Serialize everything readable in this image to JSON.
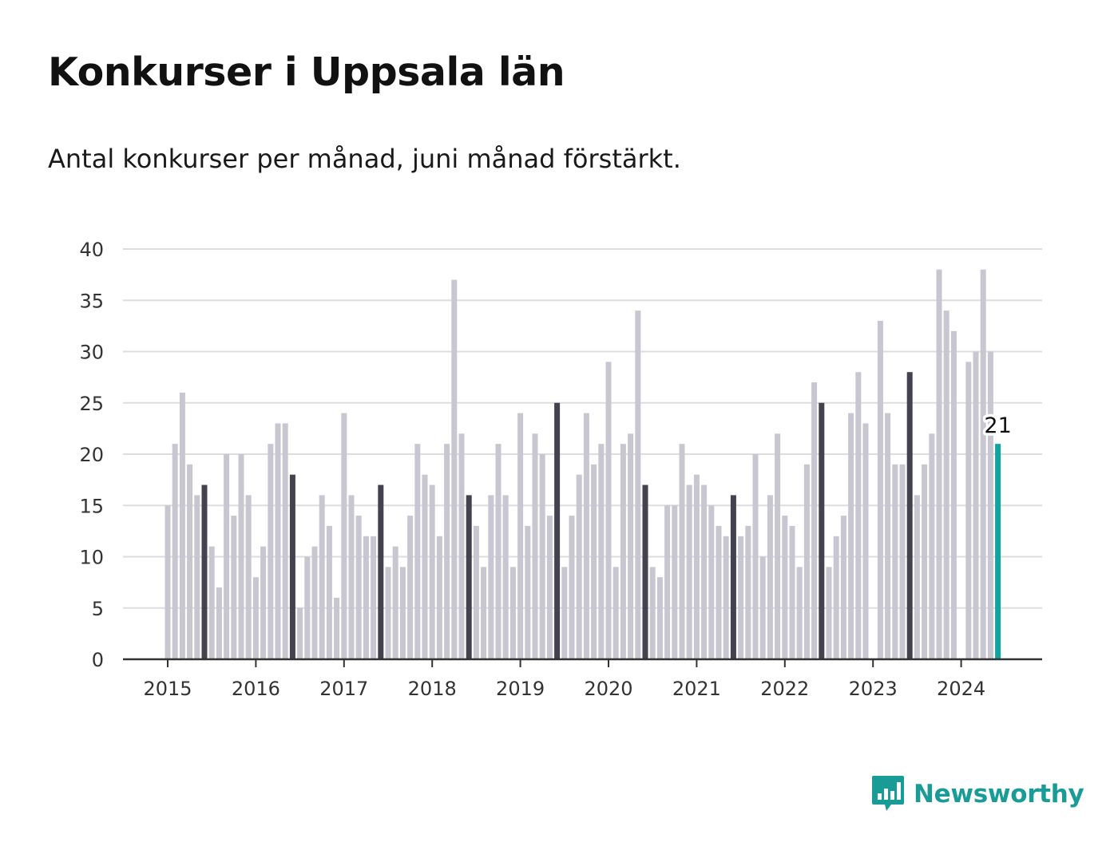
{
  "title": "Konkurser i Uppsala län",
  "subtitle": "Antal konkurser per månad, juni månad förstärkt.",
  "brand": {
    "name": "Newsworthy",
    "icon": "bar-chart-speech-bubble-icon",
    "color": "#1a9c96"
  },
  "colors": {
    "bar": "#c8c7d1",
    "june": "#43424f",
    "latest": "#0fa4a0",
    "grid": "#dddddd",
    "axis": "#333333"
  },
  "chart_data": {
    "type": "bar",
    "title": "Konkurser i Uppsala län",
    "subtitle": "Antal konkurser per månad, juni månad förstärkt.",
    "xlabel": "",
    "ylabel": "",
    "ylim": [
      0,
      40
    ],
    "yticks": [
      0,
      5,
      10,
      15,
      20,
      25,
      30,
      35,
      40
    ],
    "xticks": [
      "2015",
      "2016",
      "2017",
      "2018",
      "2019",
      "2020",
      "2021",
      "2022",
      "2023",
      "2024"
    ],
    "grid": true,
    "start": "2015-01",
    "end": "2024-06",
    "highlight": "June bars drawn dark; latest month (2024-06) drawn teal with value label",
    "values": [
      15,
      21,
      26,
      19,
      16,
      17,
      11,
      7,
      20,
      14,
      20,
      16,
      8,
      11,
      21,
      23,
      23,
      18,
      5,
      10,
      11,
      16,
      13,
      6,
      24,
      16,
      14,
      12,
      12,
      17,
      9,
      11,
      9,
      14,
      21,
      18,
      17,
      12,
      21,
      37,
      22,
      16,
      13,
      9,
      16,
      21,
      16,
      9,
      24,
      13,
      22,
      20,
      14,
      25,
      9,
      14,
      18,
      24,
      19,
      21,
      29,
      9,
      21,
      22,
      34,
      17,
      9,
      8,
      15,
      15,
      21,
      17,
      18,
      17,
      15,
      13,
      12,
      16,
      12,
      13,
      20,
      10,
      16,
      22,
      14,
      13,
      9,
      19,
      27,
      25,
      9,
      12,
      14,
      24,
      28,
      23,
      0,
      33,
      24,
      19,
      19,
      28,
      16,
      19,
      22,
      38,
      34,
      32,
      0,
      29,
      30,
      38,
      30,
      21
    ],
    "latest_label": "21"
  }
}
